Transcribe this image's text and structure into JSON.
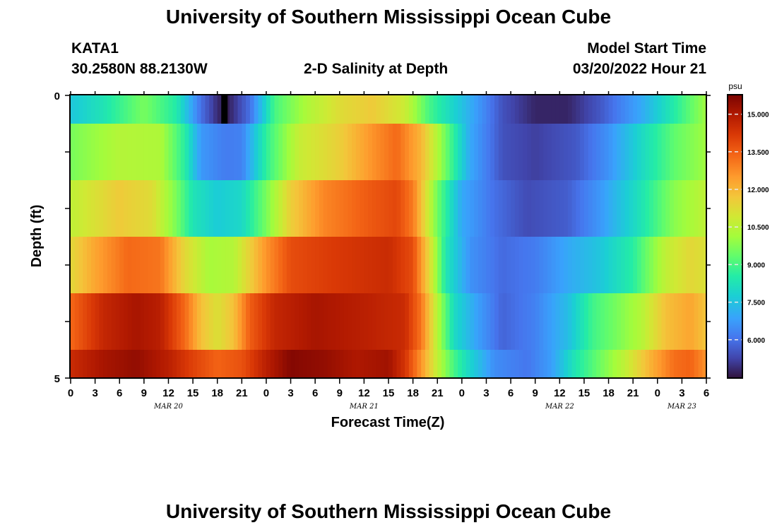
{
  "page": {
    "title": "University of Southern Mississippi Ocean Cube",
    "footer_title": "University of Southern Mississippi Ocean Cube",
    "station_id": "KATA1",
    "station_coords": "30.2580N  88.2130W",
    "plot_title": "2-D Salinity at Depth",
    "model_start_label": "Model Start Time",
    "model_start_value": "03/20/2022 Hour 21"
  },
  "chart_data": {
    "type": "heatmap",
    "title": "2-D Salinity at Depth",
    "xlabel": "Forecast Time(Z)",
    "ylabel": "Depth (ft)",
    "y_tick_labels": [
      "0",
      "5"
    ],
    "ylim": [
      0,
      5
    ],
    "x_tick_labels": [
      "0",
      "3",
      "6",
      "9",
      "12",
      "15",
      "18",
      "21",
      "0",
      "3",
      "6",
      "9",
      "12",
      "15",
      "18",
      "21",
      "0",
      "3",
      "6",
      "9",
      "12",
      "15",
      "18",
      "21",
      "0",
      "3",
      "6"
    ],
    "x_tick_hours": [
      0,
      3,
      6,
      9,
      12,
      15,
      18,
      21,
      24,
      27,
      30,
      33,
      36,
      39,
      42,
      45,
      48,
      51,
      54,
      57,
      60,
      63,
      66,
      69,
      72,
      75,
      78
    ],
    "date_labels": [
      {
        "label": "MAR 20",
        "hour": 12
      },
      {
        "label": "MAR 21",
        "hour": 36
      },
      {
        "label": "MAR 22",
        "hour": 60
      },
      {
        "label": "MAR 23",
        "hour": 75
      }
    ],
    "xlim_hours": [
      0,
      78
    ],
    "colorbar": {
      "unit": "psu",
      "min": 4.5,
      "max": 15.75,
      "tick_labels": [
        "15.000",
        "13.500",
        "12.000",
        "10.500",
        "9.000",
        "7.500",
        "6.000"
      ],
      "tick_values": [
        15.0,
        13.5,
        12.0,
        10.5,
        9.0,
        7.5,
        6.0
      ]
    },
    "layers": [
      {
        "depth": "0-0.5",
        "breakpoints": [
          [
            0,
            7.6
          ],
          [
            4,
            8.3
          ],
          [
            9,
            9.6
          ],
          [
            13,
            8.5
          ],
          [
            16,
            6.0
          ],
          [
            18,
            4.9
          ],
          [
            19,
            4.6
          ],
          [
            20,
            5.0
          ],
          [
            22,
            6.0
          ],
          [
            25,
            9.0
          ],
          [
            29,
            10.3
          ],
          [
            33,
            11.2
          ],
          [
            37,
            11.6
          ],
          [
            41,
            10.8
          ],
          [
            44,
            9.0
          ],
          [
            48,
            7.5
          ],
          [
            53,
            5.5
          ],
          [
            57,
            4.8
          ],
          [
            61,
            4.8
          ],
          [
            65,
            5.6
          ],
          [
            70,
            7.0
          ],
          [
            74,
            8.5
          ],
          [
            78,
            10.1
          ]
        ]
      },
      {
        "depth": "0.5-1.5",
        "breakpoints": [
          [
            0,
            9.6
          ],
          [
            6,
            10.4
          ],
          [
            11,
            10.3
          ],
          [
            14,
            8.6
          ],
          [
            16,
            6.7
          ],
          [
            19,
            6.2
          ],
          [
            21,
            6.3
          ],
          [
            24,
            8.7
          ],
          [
            28,
            10.7
          ],
          [
            33,
            11.5
          ],
          [
            37,
            12.6
          ],
          [
            40,
            13.3
          ],
          [
            43,
            12.0
          ],
          [
            46,
            9.5
          ],
          [
            49,
            7.0
          ],
          [
            53,
            5.5
          ],
          [
            57,
            5.2
          ],
          [
            62,
            5.6
          ],
          [
            66,
            6.6
          ],
          [
            70,
            8.0
          ],
          [
            74,
            9.3
          ],
          [
            78,
            10.1
          ]
        ]
      },
      {
        "depth": "1.5-2.5",
        "breakpoints": [
          [
            0,
            10.6
          ],
          [
            6,
            11.6
          ],
          [
            10,
            11.2
          ],
          [
            13,
            9.6
          ],
          [
            15,
            8.3
          ],
          [
            18,
            7.7
          ],
          [
            21,
            8.0
          ],
          [
            24,
            9.6
          ],
          [
            27,
            11.5
          ],
          [
            31,
            12.8
          ],
          [
            37,
            13.6
          ],
          [
            40,
            13.9
          ],
          [
            42,
            13.0
          ],
          [
            45,
            9.5
          ],
          [
            48,
            7.0
          ],
          [
            52,
            6.0
          ],
          [
            56,
            5.4
          ],
          [
            61,
            5.7
          ],
          [
            65,
            6.7
          ],
          [
            70,
            8.3
          ],
          [
            74,
            9.8
          ],
          [
            78,
            10.6
          ]
        ]
      },
      {
        "depth": "2.5-3.5",
        "breakpoints": [
          [
            0,
            11.3
          ],
          [
            3,
            12.3
          ],
          [
            7,
            13.3
          ],
          [
            11,
            13.1
          ],
          [
            14,
            11.3
          ],
          [
            17,
            10.2
          ],
          [
            20,
            10.4
          ],
          [
            24,
            12.6
          ],
          [
            27,
            13.8
          ],
          [
            33,
            14.2
          ],
          [
            39,
            14.5
          ],
          [
            42,
            13.8
          ],
          [
            44,
            11.3
          ],
          [
            46,
            8.4
          ],
          [
            49,
            6.6
          ],
          [
            53,
            5.9
          ],
          [
            57,
            6.2
          ],
          [
            61,
            7.0
          ],
          [
            65,
            7.6
          ],
          [
            69,
            8.6
          ],
          [
            73,
            10.6
          ],
          [
            76,
            11.3
          ],
          [
            78,
            11.1
          ]
        ]
      },
      {
        "depth": "3.5-4.5",
        "breakpoints": [
          [
            0,
            13.3
          ],
          [
            4,
            14.6
          ],
          [
            8,
            15.1
          ],
          [
            11,
            14.8
          ],
          [
            14,
            13.3
          ],
          [
            16,
            11.8
          ],
          [
            18,
            11.1
          ],
          [
            20,
            11.8
          ],
          [
            22,
            13.5
          ],
          [
            25,
            14.6
          ],
          [
            30,
            15.1
          ],
          [
            36,
            14.8
          ],
          [
            41,
            14.5
          ],
          [
            43,
            13.1
          ],
          [
            45,
            10.4
          ],
          [
            47,
            8.1
          ],
          [
            50,
            6.8
          ],
          [
            53,
            5.8
          ],
          [
            57,
            6.3
          ],
          [
            61,
            7.4
          ],
          [
            64,
            8.9
          ],
          [
            67,
            9.6
          ],
          [
            70,
            10.4
          ],
          [
            73,
            11.8
          ],
          [
            76,
            12.3
          ],
          [
            78,
            11.7
          ]
        ]
      },
      {
        "depth": "4.5-5",
        "breakpoints": [
          [
            0,
            14.5
          ],
          [
            4,
            15.1
          ],
          [
            8,
            15.4
          ],
          [
            12,
            14.8
          ],
          [
            15,
            14.0
          ],
          [
            18,
            13.4
          ],
          [
            21,
            13.7
          ],
          [
            24,
            14.8
          ],
          [
            27,
            15.6
          ],
          [
            31,
            15.4
          ],
          [
            35,
            15.0
          ],
          [
            39,
            15.2
          ],
          [
            41,
            14.3
          ],
          [
            43,
            12.6
          ],
          [
            45,
            10.6
          ],
          [
            47,
            9.0
          ],
          [
            49,
            7.9
          ],
          [
            52,
            6.5
          ],
          [
            56,
            6.1
          ],
          [
            59,
            6.8
          ],
          [
            62,
            8.4
          ],
          [
            65,
            9.5
          ],
          [
            68,
            10.6
          ],
          [
            71,
            12.0
          ],
          [
            74,
            13.2
          ],
          [
            76,
            13.4
          ],
          [
            78,
            12.6
          ]
        ]
      }
    ],
    "missing_value_marker": {
      "layer": 0,
      "hour": 19
    }
  }
}
